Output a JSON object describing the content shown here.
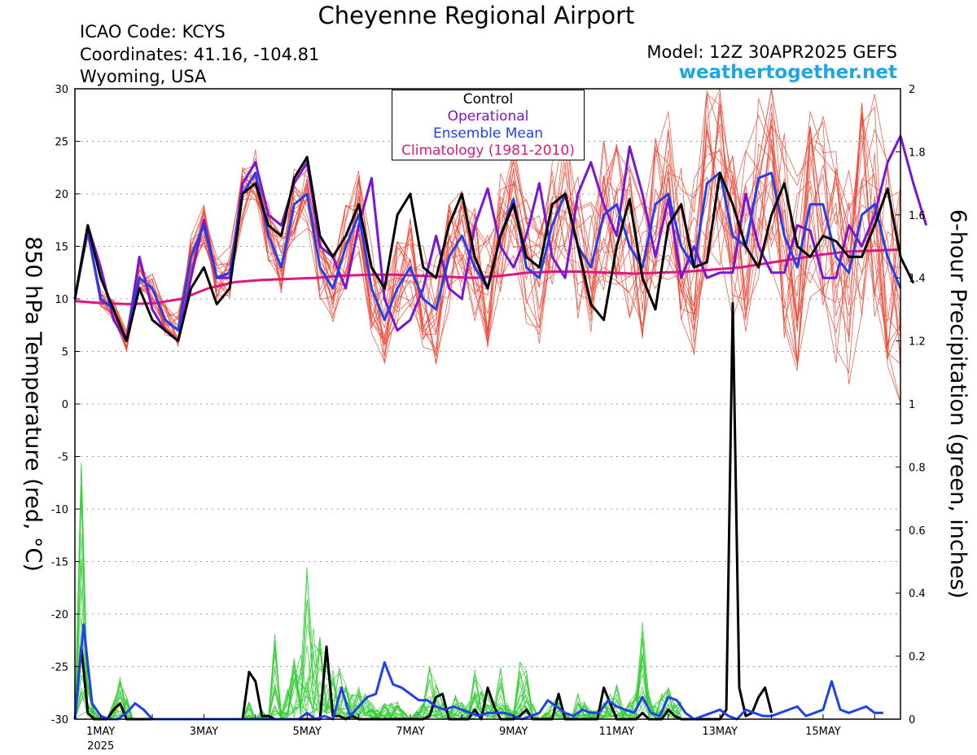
{
  "header": {
    "title": "Cheyenne Regional Airport",
    "icao": "ICAO Code: KCYS",
    "coordinates": "Coordinates: 41.16, -104.81",
    "region": "Wyoming, USA",
    "model": "Model: 12Z 30APR2025 GEFS",
    "site": "weathertogether.net"
  },
  "colors": {
    "control": "#000000",
    "operational": "#7a14d6",
    "ensemble_mean": "#2040ee",
    "climatology": "#e0157f",
    "temp_members": "#ee4433",
    "precip_members": "#33cc33",
    "site": "#1aa7e8"
  },
  "chart_data": {
    "type": "line",
    "title": "Cheyenne Regional Airport",
    "ylabel": "850 hPa Temperature (red, °C)",
    "y2label": "6-hour Precipitation (green, inches)",
    "ylim": [
      -30,
      30
    ],
    "y2lim": [
      0,
      2
    ],
    "yticks": [
      30,
      25,
      20,
      15,
      10,
      5,
      0,
      -5,
      -10,
      -15,
      -20,
      -25,
      -30
    ],
    "y2ticks": [
      "2",
      "1.8",
      "1.6",
      "1.4",
      "1.2",
      "1",
      "0.8",
      "0.6",
      "0.4",
      "0.2",
      "0"
    ],
    "xticks": [
      "1MAY",
      "3MAY",
      "5MAY",
      "7MAY",
      "9MAY",
      "11MAY",
      "13MAY",
      "15MAY"
    ],
    "xtick_sublabel": "2025",
    "x_start": "2025-04-30T12Z",
    "x_end": "2025-05-16T12Z",
    "x_step_hours": 6,
    "grid": true,
    "legend": [
      "Control",
      "Operational",
      "Ensemble Mean",
      "Climatology (1981-2010)"
    ],
    "legend_position": "top-center",
    "series": [
      {
        "name": "Control",
        "axis": "left",
        "values": [
          10,
          17,
          12,
          9,
          6,
          11,
          8,
          7,
          6,
          11,
          13,
          9.5,
          11,
          20,
          21,
          17,
          16,
          21.5,
          23.5,
          16,
          14,
          16,
          19,
          13,
          11,
          18,
          20,
          13,
          12,
          17,
          20,
          14,
          11,
          16,
          19,
          14,
          13,
          19,
          20,
          15,
          9.5,
          8,
          15,
          19.5,
          12,
          9,
          17,
          19,
          13,
          13.5,
          22,
          19,
          15,
          13,
          18,
          21,
          15,
          14,
          16,
          15.5,
          14,
          14,
          17,
          20.5,
          14,
          11.5
        ]
      },
      {
        "name": "Operational",
        "axis": "left",
        "values": [
          10,
          17,
          13,
          8,
          6,
          14,
          9,
          7,
          6,
          12,
          17.5,
          12,
          12,
          21,
          23,
          18,
          17,
          21,
          23,
          15,
          14,
          11,
          17,
          21.5,
          10,
          7,
          8,
          11,
          16,
          11,
          10,
          17,
          20.5,
          15,
          13,
          16,
          21,
          14,
          12,
          20,
          23,
          19,
          16,
          24.5,
          20,
          14,
          19.5,
          12,
          15,
          12,
          12.5,
          12.5,
          20,
          15,
          12.5,
          12.5,
          17,
          16.5,
          12,
          12,
          17,
          15,
          18,
          23,
          25.5,
          21,
          17
        ]
      },
      {
        "name": "Ensemble Mean",
        "axis": "left",
        "values": [
          10,
          16.5,
          10,
          9,
          6,
          12,
          11,
          8,
          7,
          14,
          17,
          12,
          12.5,
          20,
          22,
          16,
          13,
          19,
          20,
          13,
          11,
          15,
          18,
          11,
          8,
          11,
          13,
          10,
          9,
          14,
          16,
          13,
          11,
          16,
          19.5,
          13,
          12,
          17,
          20,
          15,
          13,
          18,
          19,
          15,
          13,
          19,
          20,
          15,
          13,
          21,
          22,
          16,
          15,
          21.5,
          22,
          16,
          13,
          19,
          19,
          14,
          12.5,
          18,
          19,
          14,
          11
        ]
      },
      {
        "name": "Climatology (1981-2010)",
        "axis": "left",
        "values": [
          9.8,
          9.6,
          9.5,
          9.6,
          10.0,
          11.0,
          11.6,
          11.8,
          11.9,
          12.0,
          12.2,
          12.3,
          12.3,
          12.2,
          12.1,
          12.0,
          12.2,
          12.5,
          12.6,
          12.6,
          12.5,
          12.4,
          12.5,
          12.6,
          12.8,
          13.0,
          13.4,
          13.8,
          14.2,
          14.5,
          14.6,
          14.7
        ]
      },
      {
        "name": "Control precip",
        "axis": "right",
        "values": [
          0,
          0.23,
          0.02,
          0,
          0,
          0,
          0.03,
          0.05,
          0,
          0,
          0,
          0,
          0,
          0,
          0,
          0,
          0,
          0,
          0,
          0,
          0,
          0,
          0,
          0,
          0,
          0,
          0,
          0.15,
          0.12,
          0.01,
          0.01,
          0,
          0,
          0,
          0,
          0,
          0,
          0,
          0,
          0.23,
          0.01,
          0.01,
          0,
          0.01,
          0,
          0,
          0,
          0,
          0,
          0,
          0,
          0,
          0,
          0,
          0,
          0.01,
          0.07,
          0.08,
          0,
          0,
          0,
          0,
          0.03,
          0,
          0.1,
          0.04,
          0,
          0,
          0,
          0.01,
          0.03,
          0,
          0,
          0,
          0,
          0.08,
          0,
          0,
          0,
          0,
          0,
          0,
          0.1,
          0.05,
          0,
          0,
          0,
          0,
          0.02,
          0,
          0,
          0,
          0.03,
          0.01,
          0,
          0,
          0,
          0,
          0,
          0,
          0,
          0.03,
          1.32,
          0.1,
          0.01,
          0.02,
          0.07,
          0.1,
          0.02
        ]
      },
      {
        "name": "Ensemble Mean precip",
        "axis": "right",
        "values": [
          0,
          0.3,
          0.05,
          0.01,
          0,
          0,
          0.02,
          0.05,
          0.03,
          0,
          0,
          0,
          0,
          0,
          0,
          0,
          0,
          0,
          0,
          0,
          0,
          0,
          0,
          0,
          0,
          0,
          0,
          0.02,
          0,
          0.01,
          0,
          0.1,
          0.01,
          0.04,
          0.07,
          0.08,
          0.18,
          0.11,
          0.1,
          0.08,
          0.06,
          0.06,
          0.04,
          0.03,
          0.04,
          0.03,
          0.02,
          0.01,
          0.02,
          0.02,
          0.02,
          0.01,
          0,
          0.01,
          0.02,
          0.06,
          0.04,
          0.02,
          0.01,
          0.03,
          0.02,
          0.02,
          0.06,
          0.04,
          0.03,
          0.02,
          0.07,
          0.02,
          0.01,
          0.07,
          0.06,
          0.02,
          0.0,
          0.01,
          0.02,
          0.03,
          0.01,
          0,
          0.03,
          0.02,
          0.01,
          0.01,
          0.02,
          0.03,
          0.04,
          0.01,
          0.02,
          0.03,
          0.12,
          0.03,
          0.02,
          0.03,
          0.04,
          0.02,
          0.02
        ]
      }
    ]
  }
}
